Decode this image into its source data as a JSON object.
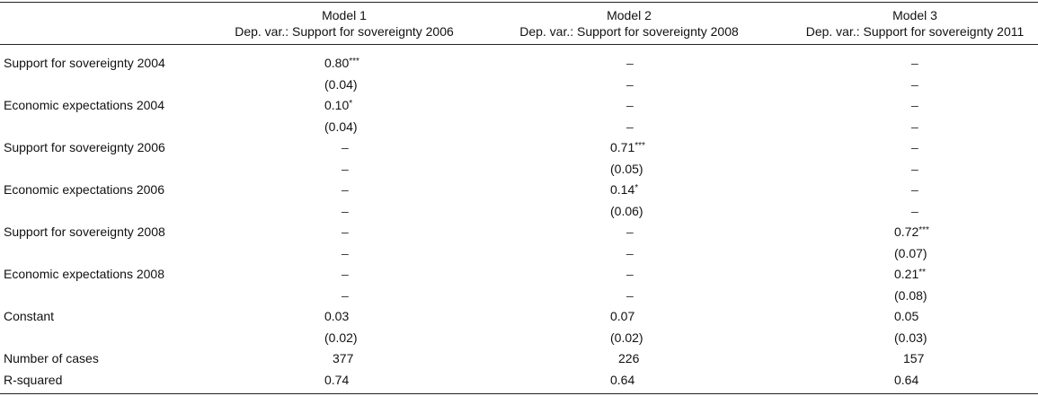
{
  "headers": [
    {
      "model": "Model 1",
      "dep": "Dep. var.: Support for sovereignty 2006"
    },
    {
      "model": "Model 2",
      "dep": "Dep. var.: Support for sovereignty 2008"
    },
    {
      "model": "Model 3",
      "dep": "Dep. var.: Support for sovereignty 2011"
    }
  ],
  "rows": [
    {
      "label": "Support for sovereignty 2004",
      "cells": [
        {
          "v": "0.80",
          "s": "***"
        },
        {
          "v": "–"
        },
        {
          "v": "–"
        }
      ]
    },
    {
      "label": "",
      "cells": [
        {
          "v": "(0.04)"
        },
        {
          "v": "–"
        },
        {
          "v": "–"
        }
      ]
    },
    {
      "label": "Economic expectations 2004",
      "cells": [
        {
          "v": "0.10",
          "s": "*"
        },
        {
          "v": "–"
        },
        {
          "v": "–"
        }
      ]
    },
    {
      "label": "",
      "cells": [
        {
          "v": "(0.04)"
        },
        {
          "v": "–"
        },
        {
          "v": "–"
        }
      ]
    },
    {
      "label": "Support for sovereignty 2006",
      "cells": [
        {
          "v": "–"
        },
        {
          "v": "0.71",
          "s": "***"
        },
        {
          "v": "–"
        }
      ]
    },
    {
      "label": "",
      "cells": [
        {
          "v": "–"
        },
        {
          "v": "(0.05)"
        },
        {
          "v": "–"
        }
      ]
    },
    {
      "label": "Economic expectations 2006",
      "cells": [
        {
          "v": "–"
        },
        {
          "v": "0.14",
          "s": "*"
        },
        {
          "v": "–"
        }
      ]
    },
    {
      "label": "",
      "cells": [
        {
          "v": "–"
        },
        {
          "v": "(0.06)"
        },
        {
          "v": "–"
        }
      ]
    },
    {
      "label": "Support for sovereignty 2008",
      "cells": [
        {
          "v": "–"
        },
        {
          "v": "–"
        },
        {
          "v": "0.72",
          "s": "***"
        }
      ]
    },
    {
      "label": "",
      "cells": [
        {
          "v": "–"
        },
        {
          "v": "–"
        },
        {
          "v": "(0.07)"
        }
      ]
    },
    {
      "label": "Economic expectations 2008",
      "cells": [
        {
          "v": "–"
        },
        {
          "v": "–"
        },
        {
          "v": "0.21",
          "s": "**"
        }
      ]
    },
    {
      "label": "",
      "cells": [
        {
          "v": "–"
        },
        {
          "v": "–"
        },
        {
          "v": "(0.08)"
        }
      ]
    },
    {
      "label": "Constant",
      "cells": [
        {
          "v": "0.03"
        },
        {
          "v": "0.07"
        },
        {
          "v": "0.05"
        }
      ]
    },
    {
      "label": "",
      "cells": [
        {
          "v": "(0.02)"
        },
        {
          "v": "(0.02)"
        },
        {
          "v": "(0.03)"
        }
      ]
    },
    {
      "label": "Number of cases",
      "cells": [
        {
          "v": "377",
          "n": true
        },
        {
          "v": "226",
          "n": true
        },
        {
          "v": "157",
          "n": true
        }
      ]
    },
    {
      "label": "R-squared",
      "cells": [
        {
          "v": "0.74"
        },
        {
          "v": "0.64"
        },
        {
          "v": "0.64"
        }
      ]
    }
  ]
}
